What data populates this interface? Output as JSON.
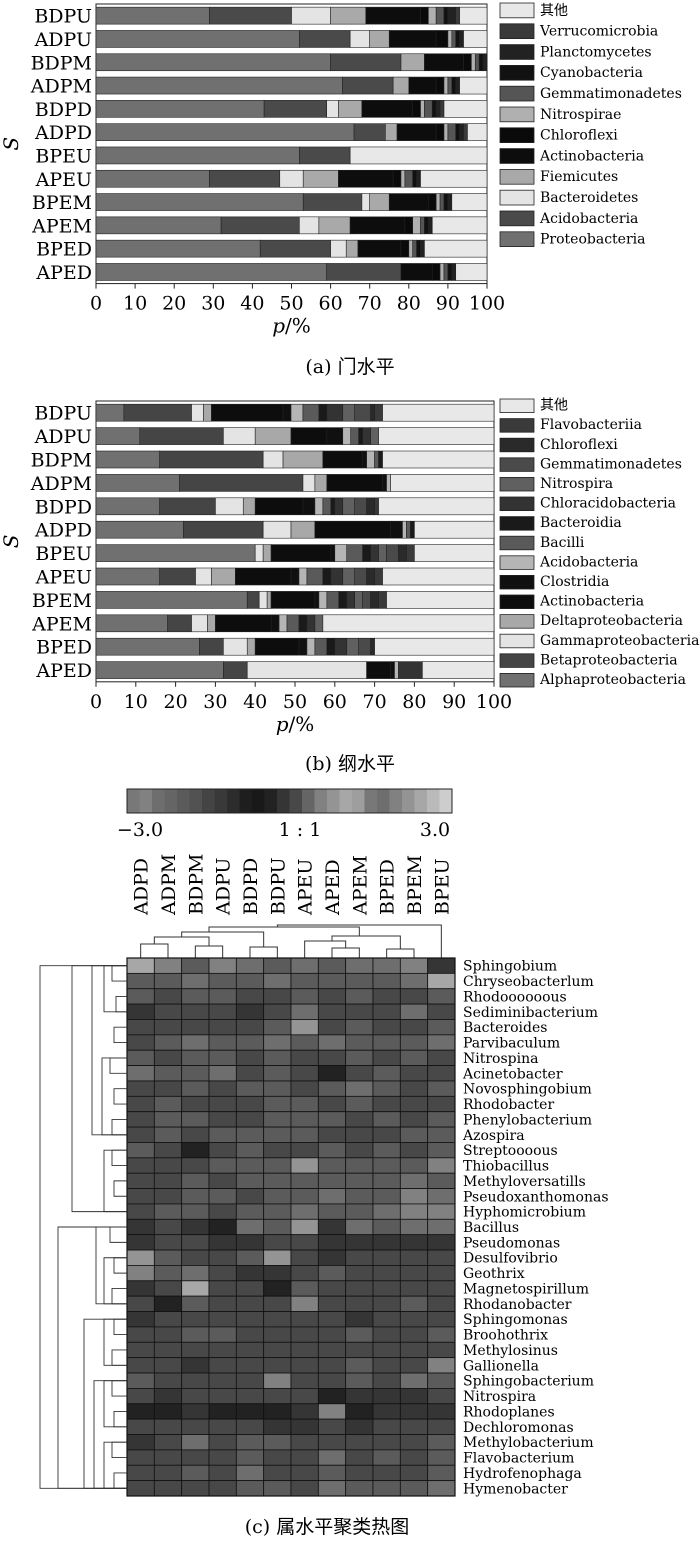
{
  "chart_data": [
    {
      "type": "bar",
      "stacked": true,
      "orientation": "horizontal",
      "caption": "(a) 门水平",
      "xlabel_var": "p",
      "xlabel_unit": "/%",
      "ylabel": "S",
      "xlim": [
        0,
        100
      ],
      "xticks": [
        "0",
        "10",
        "20",
        "30",
        "40",
        "50",
        "60",
        "70",
        "80",
        "90",
        "100"
      ],
      "categories": [
        "BDPU",
        "ADPU",
        "BDPM",
        "ADPM",
        "BDPD",
        "ADPD",
        "BPEU",
        "APEU",
        "BPEM",
        "APEM",
        "BPED",
        "APED"
      ],
      "legend": [
        "其他",
        "Verrucomicrobia",
        "Planctomycetes",
        "Cyanobacteria",
        "Gemmatimonadetes",
        "Nitrospirae",
        "Chloroflexi",
        "Actinobacteria",
        "Fiemicutes",
        "Bacteroidetes",
        "Acidobacteria",
        "Proteobacteria"
      ],
      "series": [
        {
          "name": "Proteobacteria",
          "color": "#707070",
          "values": [
            29,
            52,
            60,
            63,
            43,
            66,
            52,
            29,
            53,
            32,
            42,
            59
          ]
        },
        {
          "name": "Acidobacteria",
          "color": "#4a4a4a",
          "values": [
            21,
            13,
            18,
            13,
            16,
            8,
            13,
            18,
            15,
            20,
            18,
            19
          ]
        },
        {
          "name": "Bacteroidetes",
          "color": "#e4e4e4",
          "values": [
            10,
            5,
            0,
            0,
            3,
            0,
            0,
            6,
            2,
            5,
            4,
            0
          ]
        },
        {
          "name": "Fiemicutes",
          "color": "#a9a9a9",
          "values": [
            9,
            5,
            6,
            4,
            6,
            3,
            0,
            9,
            5,
            8,
            3,
            0
          ]
        },
        {
          "name": "Actinobacteria",
          "color": "#0d0d0d",
          "values": [
            14,
            12,
            10,
            7,
            13,
            10,
            0,
            14,
            10,
            14,
            11,
            8
          ]
        },
        {
          "name": "Chloroflexi",
          "color": "#0a0a0a",
          "values": [
            2,
            3,
            2,
            2,
            2,
            2,
            0,
            2,
            2,
            2,
            2,
            2
          ]
        },
        {
          "name": "Nitrospirae",
          "color": "#b0b0b0",
          "values": [
            2,
            1,
            1,
            1,
            1,
            1,
            0,
            1,
            1,
            2,
            1,
            1
          ]
        },
        {
          "name": "Gemmatimonadetes",
          "color": "#555555",
          "values": [
            2,
            1,
            1,
            1,
            2,
            2,
            0,
            2,
            1,
            1,
            1,
            1
          ]
        },
        {
          "name": "Cyanobacteria",
          "color": "#111111",
          "values": [
            1,
            1,
            1,
            1,
            1,
            1,
            0,
            1,
            1,
            1,
            1,
            1
          ]
        },
        {
          "name": "Planctomycetes",
          "color": "#222222",
          "values": [
            2,
            1,
            1,
            1,
            1,
            1,
            0,
            1,
            1,
            1,
            1,
            1
          ]
        },
        {
          "name": "Verrucomicrobia",
          "color": "#3a3a3a",
          "values": [
            1,
            0,
            0,
            0,
            1,
            1,
            0,
            0,
            0,
            0,
            0,
            0
          ]
        },
        {
          "name": "其他",
          "color": "#e8e8e8",
          "values": [
            7,
            6,
            0,
            7,
            11,
            5,
            35,
            17,
            9,
            14,
            16,
            8
          ]
        }
      ]
    },
    {
      "type": "bar",
      "stacked": true,
      "orientation": "horizontal",
      "caption": "(b) 纲水平",
      "xlabel_var": "p",
      "xlabel_unit": "/%",
      "ylabel": "S",
      "xlim": [
        0,
        100
      ],
      "xticks": [
        "0",
        "10",
        "20",
        "30",
        "40",
        "50",
        "60",
        "70",
        "80",
        "90",
        "100"
      ],
      "categories": [
        "BDPU",
        "ADPU",
        "BDPM",
        "ADPM",
        "BDPD",
        "ADPD",
        "BPEU",
        "APEU",
        "BPEM",
        "APEM",
        "BPED",
        "APED"
      ],
      "legend": [
        "其他",
        "Flavobacteriia",
        "Chloroflexi",
        "Gemmatimonadetes",
        "Nitrospira",
        "Chloracidobacteria",
        "Bacteroidia",
        "Bacilli",
        "Acidobacteria",
        "Clostridia",
        "Actinobacteria",
        "Deltaproteobacteria",
        "Gammaproteobacteria",
        "Betaproteobacteria",
        "Alphaproteobacteria"
      ],
      "series": [
        {
          "name": "Alphaproteobacteria",
          "color": "#707070",
          "values": [
            7,
            11,
            16,
            21,
            16,
            22,
            40,
            16,
            38,
            18,
            26,
            32
          ]
        },
        {
          "name": "Betaproteobacteria",
          "color": "#454545",
          "values": [
            17,
            21,
            26,
            31,
            14,
            20,
            0,
            9,
            3,
            6,
            6,
            6
          ]
        },
        {
          "name": "Gammaproteobacteria",
          "color": "#e4e4e4",
          "values": [
            3,
            8,
            5,
            3,
            7,
            7,
            2,
            4,
            2,
            4,
            6,
            30
          ]
        },
        {
          "name": "Deltaproteobacteria",
          "color": "#a8a8a8",
          "values": [
            2,
            9,
            10,
            3,
            3,
            6,
            2,
            6,
            1,
            2,
            2,
            0
          ]
        },
        {
          "name": "Actinobacteria",
          "color": "#0d0d0d",
          "values": [
            18,
            9,
            10,
            14,
            12,
            19,
            15,
            14,
            11,
            14,
            11,
            6
          ]
        },
        {
          "name": "Clostridia",
          "color": "#101010",
          "values": [
            2,
            4,
            1,
            1,
            3,
            3,
            1,
            2,
            1,
            2,
            2,
            1
          ]
        },
        {
          "name": "Acidobacteria",
          "color": "#b5b5b5",
          "values": [
            3,
            2,
            2,
            1,
            2,
            1,
            3,
            2,
            2,
            2,
            2,
            1
          ]
        },
        {
          "name": "Bacilli",
          "color": "#5a5a5a",
          "values": [
            4,
            2,
            1,
            0,
            2,
            1,
            4,
            4,
            3,
            3,
            3,
            0
          ]
        },
        {
          "name": "Bacteroidia",
          "color": "#1a1a1a",
          "values": [
            2,
            1,
            1,
            0,
            1,
            1,
            2,
            2,
            2,
            2,
            2,
            0
          ]
        },
        {
          "name": "Chloracidobacteria",
          "color": "#333333",
          "values": [
            4,
            2,
            0,
            0,
            2,
            0,
            2,
            3,
            2,
            2,
            3,
            6
          ]
        },
        {
          "name": "Nitrospira",
          "color": "#606060",
          "values": [
            3,
            2,
            0,
            0,
            3,
            0,
            2,
            3,
            2,
            2,
            3,
            0
          ]
        },
        {
          "name": "Gemmatimonadetes",
          "color": "#4a4a4a",
          "values": [
            4,
            0,
            0,
            0,
            3,
            0,
            3,
            3,
            2,
            0,
            3,
            0
          ]
        },
        {
          "name": "Chloroflexi",
          "color": "#2a2a2a",
          "values": [
            1,
            0,
            0,
            0,
            2,
            0,
            2,
            2,
            2,
            0,
            1,
            0
          ]
        },
        {
          "name": "Flavobacteriia",
          "color": "#3a3a3a",
          "values": [
            2,
            0,
            0,
            0,
            1,
            0,
            2,
            2,
            2,
            0,
            0,
            0
          ]
        },
        {
          "name": "其他",
          "color": "#e8e8e8",
          "values": [
            28,
            29,
            28,
            26,
            29,
            20,
            20,
            28,
            27,
            43,
            30,
            18
          ]
        }
      ]
    },
    {
      "type": "heatmap",
      "caption": "(c) 属水平聚类热图",
      "colorbar": {
        "min_label": "−3.0",
        "mid_label": "1 : 1",
        "max_label": "3.0"
      },
      "columns": [
        "ADPD",
        "ADPM",
        "BDPM",
        "ADPU",
        "BDPD",
        "BDPU",
        "APEU",
        "APED",
        "APEM",
        "BPED",
        "BPEM",
        "BPEU"
      ],
      "rows": [
        "Sphingobium",
        "Chryseobacterlum",
        "Rhodoooooous",
        "Sediminibacterium",
        "Bacteroides",
        "Parvibaculum",
        "Nitrospina",
        "Acinetobacter",
        "Novosphingobium",
        "Rhodobacter",
        "Phenylobacterium",
        "Azospira",
        "Streptoooous",
        "Thiobacillus",
        "Methyloversatills",
        "Pseudoxanthomonas",
        "Hyphomicrobium",
        "Bacillus",
        "Pseudomonas",
        "Desulfovibrio",
        "Geothrix",
        "Magnetospirillum",
        "Rhodanobacter",
        "Sphingomonas",
        "Broohothrix",
        "Methylosinus",
        "Gallionella",
        "Sphingobacterium",
        "Nitrospira",
        "Rhodoplanes",
        "Dechloromonas",
        "Methylobacterium",
        "Flavobacterium",
        "Hydrofenophaga",
        "Hymenobacter"
      ],
      "values": [
        [
          0.8,
          0.6,
          0.4,
          0.6,
          0.5,
          0.4,
          0.5,
          0.4,
          0.5,
          0.5,
          0.6,
          0.2
        ],
        [
          0.4,
          0.4,
          0.5,
          0.4,
          0.4,
          0.5,
          0.4,
          0.4,
          0.4,
          0.4,
          0.5,
          0.8
        ],
        [
          0.4,
          0.3,
          0.4,
          0.4,
          0.3,
          0.3,
          0.4,
          0.3,
          0.4,
          0.3,
          0.3,
          0.4
        ],
        [
          0.2,
          0.3,
          0.3,
          0.3,
          0.2,
          0.3,
          0.5,
          0.3,
          0.3,
          0.3,
          0.5,
          0.3
        ],
        [
          0.3,
          0.3,
          0.3,
          0.3,
          0.3,
          0.4,
          0.7,
          0.3,
          0.4,
          0.3,
          0.3,
          0.4
        ],
        [
          0.3,
          0.4,
          0.5,
          0.4,
          0.4,
          0.5,
          0.4,
          0.5,
          0.4,
          0.4,
          0.4,
          0.5
        ],
        [
          0.4,
          0.3,
          0.4,
          0.4,
          0.3,
          0.4,
          0.3,
          0.3,
          0.4,
          0.3,
          0.4,
          0.3
        ],
        [
          0.5,
          0.4,
          0.4,
          0.5,
          0.3,
          0.4,
          0.3,
          0.1,
          0.3,
          0.4,
          0.3,
          0.3
        ],
        [
          0.3,
          0.3,
          0.4,
          0.3,
          0.4,
          0.4,
          0.3,
          0.4,
          0.5,
          0.4,
          0.3,
          0.4
        ],
        [
          0.3,
          0.4,
          0.3,
          0.3,
          0.3,
          0.4,
          0.4,
          0.3,
          0.4,
          0.3,
          0.3,
          0.3
        ],
        [
          0.3,
          0.4,
          0.4,
          0.3,
          0.3,
          0.4,
          0.4,
          0.4,
          0.3,
          0.4,
          0.3,
          0.4
        ],
        [
          0.3,
          0.4,
          0.3,
          0.4,
          0.4,
          0.4,
          0.4,
          0.3,
          0.3,
          0.3,
          0.4,
          0.4
        ],
        [
          0.4,
          0.3,
          0.1,
          0.3,
          0.4,
          0.3,
          0.3,
          0.4,
          0.3,
          0.4,
          0.3,
          0.4
        ],
        [
          0.3,
          0.3,
          0.3,
          0.4,
          0.4,
          0.4,
          0.7,
          0.4,
          0.4,
          0.4,
          0.4,
          0.6
        ],
        [
          0.3,
          0.3,
          0.4,
          0.3,
          0.4,
          0.4,
          0.4,
          0.4,
          0.4,
          0.4,
          0.5,
          0.4
        ],
        [
          0.3,
          0.3,
          0.4,
          0.4,
          0.3,
          0.4,
          0.4,
          0.5,
          0.4,
          0.4,
          0.6,
          0.5
        ],
        [
          0.3,
          0.4,
          0.4,
          0.3,
          0.4,
          0.4,
          0.5,
          0.4,
          0.4,
          0.5,
          0.6,
          0.6
        ],
        [
          0.2,
          0.3,
          0.2,
          0.1,
          0.5,
          0.4,
          0.7,
          0.2,
          0.5,
          0.4,
          0.5,
          0.5
        ],
        [
          0.2,
          0.3,
          0.3,
          0.2,
          0.2,
          0.3,
          0.3,
          0.2,
          0.2,
          0.2,
          0.2,
          0.2
        ],
        [
          0.7,
          0.4,
          0.3,
          0.3,
          0.4,
          0.7,
          0.3,
          0.2,
          0.3,
          0.3,
          0.3,
          0.3
        ],
        [
          0.6,
          0.4,
          0.5,
          0.3,
          0.2,
          0.2,
          0.3,
          0.4,
          0.3,
          0.3,
          0.3,
          0.3
        ],
        [
          0.2,
          0.3,
          0.8,
          0.3,
          0.3,
          0.1,
          0.4,
          0.3,
          0.3,
          0.3,
          0.3,
          0.3
        ],
        [
          0.3,
          0.1,
          0.4,
          0.3,
          0.3,
          0.3,
          0.6,
          0.3,
          0.3,
          0.3,
          0.4,
          0.3
        ],
        [
          0.2,
          0.3,
          0.3,
          0.3,
          0.3,
          0.3,
          0.3,
          0.3,
          0.2,
          0.3,
          0.3,
          0.3
        ],
        [
          0.3,
          0.3,
          0.4,
          0.4,
          0.3,
          0.3,
          0.3,
          0.3,
          0.4,
          0.3,
          0.3,
          0.4
        ],
        [
          0.3,
          0.3,
          0.3,
          0.3,
          0.3,
          0.3,
          0.3,
          0.3,
          0.3,
          0.3,
          0.3,
          0.3
        ],
        [
          0.3,
          0.3,
          0.2,
          0.3,
          0.3,
          0.3,
          0.3,
          0.3,
          0.4,
          0.3,
          0.3,
          0.6
        ],
        [
          0.4,
          0.3,
          0.3,
          0.3,
          0.3,
          0.6,
          0.3,
          0.3,
          0.4,
          0.3,
          0.5,
          0.4
        ],
        [
          0.3,
          0.2,
          0.3,
          0.3,
          0.3,
          0.3,
          0.3,
          0.1,
          0.2,
          0.2,
          0.2,
          0.3
        ],
        [
          0.1,
          0.1,
          0.2,
          0.1,
          0.1,
          0.1,
          0.2,
          0.6,
          0.1,
          0.2,
          0.2,
          0.2
        ],
        [
          0.3,
          0.3,
          0.3,
          0.3,
          0.3,
          0.2,
          0.2,
          0.3,
          0.2,
          0.3,
          0.3,
          0.3
        ],
        [
          0.2,
          0.3,
          0.5,
          0.3,
          0.4,
          0.4,
          0.3,
          0.3,
          0.3,
          0.3,
          0.3,
          0.4
        ],
        [
          0.3,
          0.3,
          0.3,
          0.3,
          0.4,
          0.3,
          0.3,
          0.5,
          0.3,
          0.4,
          0.3,
          0.4
        ],
        [
          0.3,
          0.3,
          0.4,
          0.3,
          0.5,
          0.3,
          0.3,
          0.4,
          0.3,
          0.3,
          0.3,
          0.4
        ],
        [
          0.3,
          0.3,
          0.3,
          0.3,
          0.4,
          0.4,
          0.3,
          0.5,
          0.4,
          0.4,
          0.4,
          0.5
        ]
      ]
    }
  ]
}
